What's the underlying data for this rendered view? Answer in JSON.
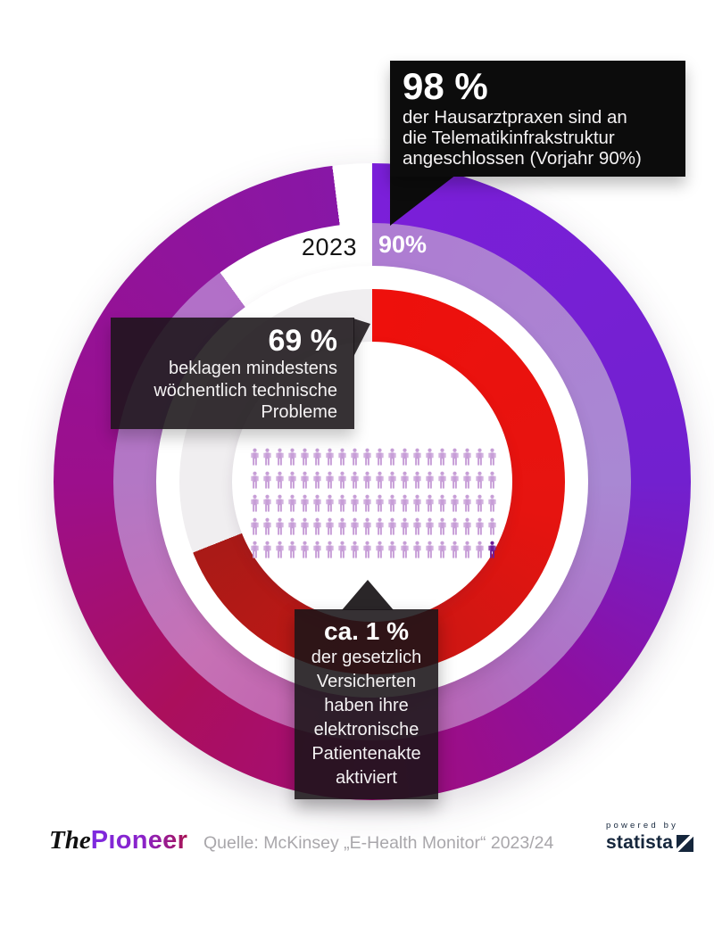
{
  "background_color": "#ffffff",
  "chart_data": {
    "type": "donut-infographic",
    "rings": {
      "outer": {
        "label": "Hausarztpraxen an die Telematikinfrastruktur angeschlossen",
        "value_pct": 98,
        "arc_end_deg": 352.8,
        "remainder_color": "#ffffff",
        "stops": [
          [
            0,
            "#7b1fd9"
          ],
          [
            90,
            "#7220cf"
          ],
          [
            135,
            "#8d10a0"
          ],
          [
            180,
            "#a30d7a"
          ],
          [
            222,
            "#ab0f5c"
          ],
          [
            270,
            "#9c0f8c"
          ],
          [
            352.8,
            "#8817a6"
          ]
        ]
      },
      "middle": {
        "label": "Vorjahr",
        "value_pct": 90,
        "arc_end_deg": 324,
        "remainder_color": "#ffffff",
        "stops": [
          [
            0,
            "#ae7cd2"
          ],
          [
            90,
            "#a988d3"
          ],
          [
            135,
            "#ae73c6"
          ],
          [
            180,
            "#bd5dab"
          ],
          [
            225,
            "#c671b5"
          ],
          [
            270,
            "#b377c5"
          ],
          [
            324,
            "#b26fc8"
          ]
        ]
      },
      "inner": {
        "label": "beklagen mindestens wöchentlich technische Probleme",
        "value_pct": 69,
        "arc_end_deg": 248.4,
        "remainder_color": "#f0eef0",
        "stops": [
          [
            0,
            "#ee100c"
          ],
          [
            100,
            "#e61410"
          ],
          [
            180,
            "#c41714"
          ],
          [
            248.4,
            "#a91a17"
          ]
        ]
      }
    },
    "labels": {
      "year": "2023",
      "prev_value": "90%"
    },
    "pictogram": {
      "total": 100,
      "highlighted_count": 1,
      "columns": 20,
      "rows": 5,
      "icon_color": "#c79ed7",
      "highlight_color": "#6e1b9a"
    }
  },
  "callouts": {
    "top": {
      "headline": "98 %",
      "lines": [
        "der Hausarztpraxen sind an",
        "die Telematikinfrakstruktur",
        "angeschlossen (Vorjahr 90%)"
      ]
    },
    "left": {
      "headline": "69 %",
      "lines": [
        "beklagen mindestens",
        "wöchentlich technische",
        "Probleme"
      ]
    },
    "bottom": {
      "headline": "ca. 1 %",
      "lines": [
        "der gesetzlich",
        "Versicherten",
        "haben ihre",
        "elektronische",
        "Patientenakte",
        "aktiviert"
      ]
    }
  },
  "footer": {
    "brand_the": "The",
    "brand_pioneer": "Pıoneer",
    "source": "Quelle: McKinsey „E-Health Monitor“ 2023/24",
    "powered_by": "powered by",
    "statista": "statista"
  }
}
